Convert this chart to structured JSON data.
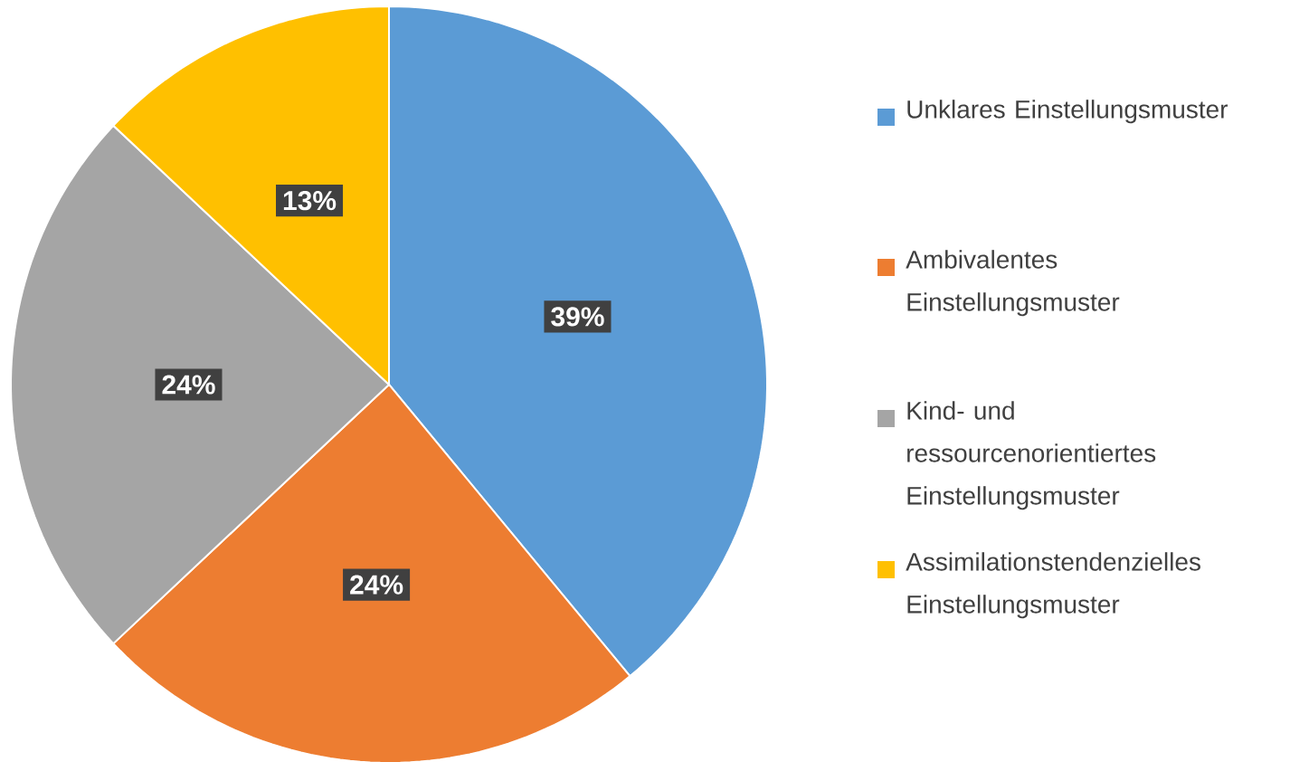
{
  "chart_data": {
    "type": "pie",
    "categories": [
      "Unklares Einstellungsmuster",
      "Ambivalentes Einstellungsmuster",
      "Kind- und ressourcenorientiertes Einstellungsmuster",
      "Assimilationstendenzielles Einstellungsmuster"
    ],
    "values": [
      39,
      24,
      24,
      13
    ],
    "value_labels": [
      "39%",
      "24%",
      "24%",
      "13%"
    ],
    "colors": [
      "#5b9bd5",
      "#ed7d31",
      "#a5a5a5",
      "#ffc000"
    ],
    "legend": "right"
  }
}
